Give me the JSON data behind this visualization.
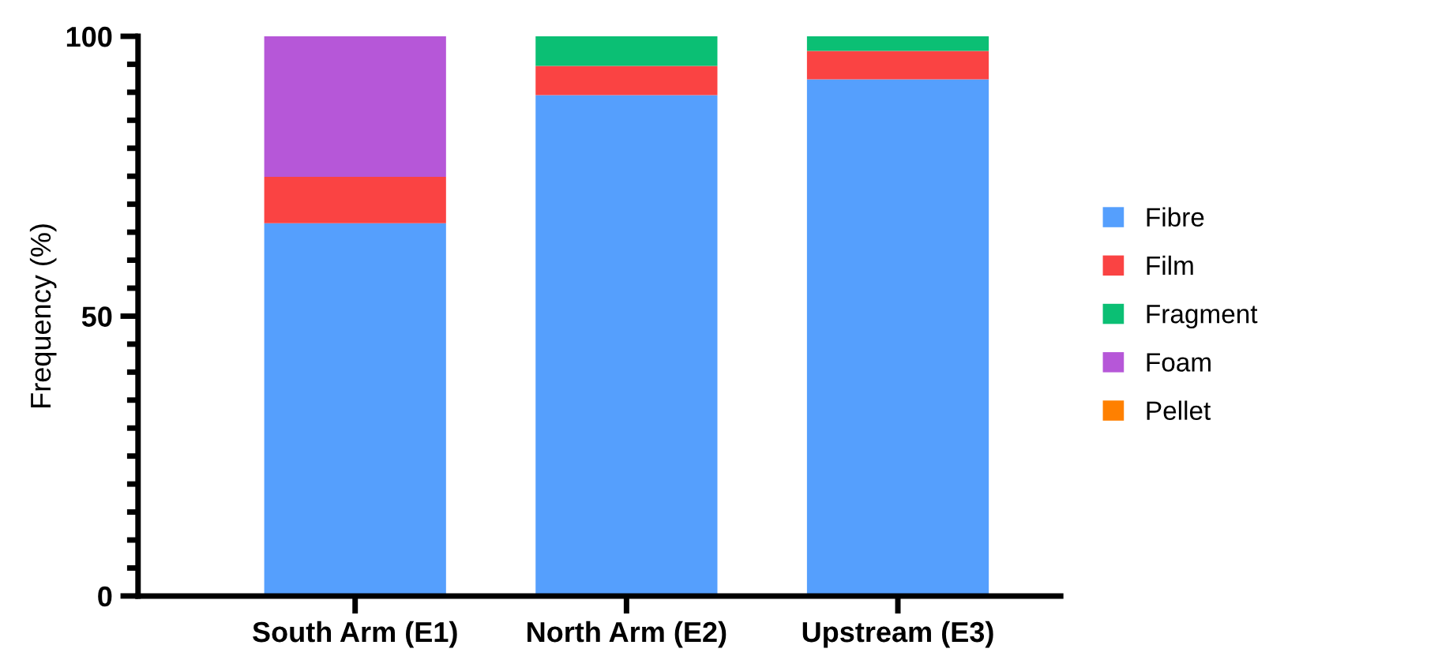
{
  "chart_data": {
    "type": "bar",
    "stacked": true,
    "ylabel": "Frequency (%)",
    "categories": [
      "South Arm (E1)",
      "North Arm (E2)",
      "Upstream (E3)"
    ],
    "series": [
      {
        "name": "Fibre",
        "color": "#559ffd",
        "values": [
          66.6,
          89.5,
          92.3
        ]
      },
      {
        "name": "Film",
        "color": "#fa4343",
        "values": [
          8.3,
          5.2,
          5.1
        ]
      },
      {
        "name": "Fragment",
        "color": "#0bbf74",
        "values": [
          0,
          5.3,
          2.6
        ]
      },
      {
        "name": "Foam",
        "color": "#b657d8",
        "values": [
          25.1,
          0,
          0
        ]
      },
      {
        "name": "Pellet",
        "color": "#ff8000",
        "values": [
          0,
          0,
          0
        ]
      }
    ],
    "ylim": [
      0,
      100
    ],
    "yticks": [
      0,
      50,
      100
    ],
    "grid": false,
    "legend": "right"
  }
}
